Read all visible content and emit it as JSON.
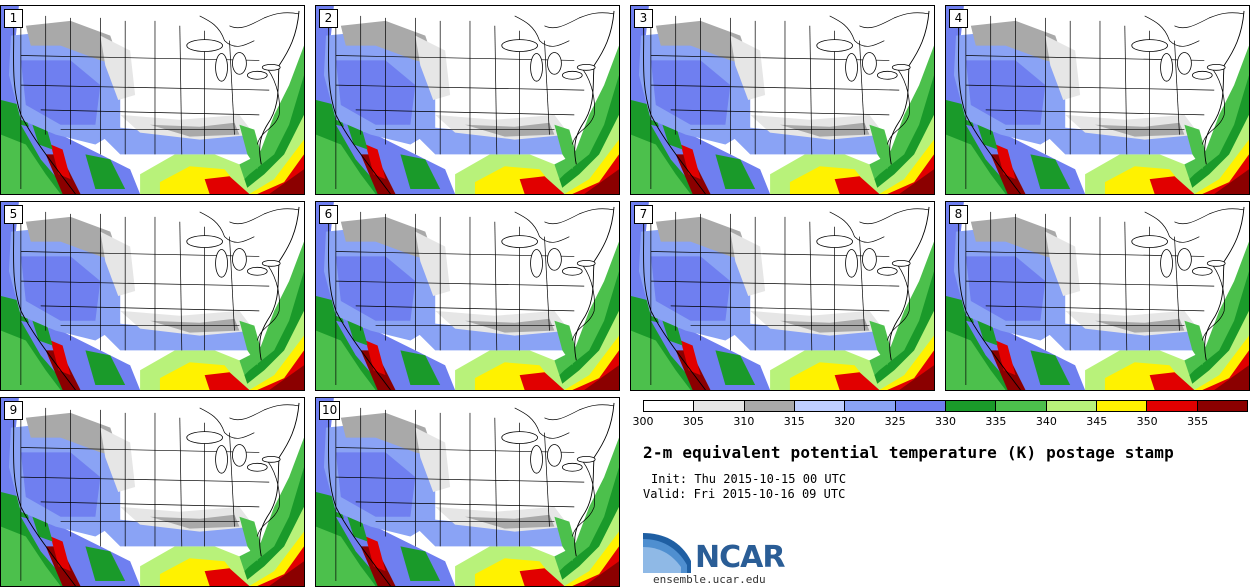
{
  "panels": [
    {
      "label": "1"
    },
    {
      "label": "2"
    },
    {
      "label": "3"
    },
    {
      "label": "4"
    },
    {
      "label": "5"
    },
    {
      "label": "6"
    },
    {
      "label": "7"
    },
    {
      "label": "8"
    },
    {
      "label": "9"
    },
    {
      "label": "10"
    }
  ],
  "colorbar": {
    "colors": [
      "#ffffff",
      "#e6e6e6",
      "#a9a9a9",
      "#bfcfff",
      "#8aa3f5",
      "#6f7ff0",
      "#1a9a2a",
      "#4cc04c",
      "#b8f27a",
      "#fff200",
      "#e10000",
      "#8b0000"
    ],
    "ticks": [
      "300",
      "305",
      "310",
      "315",
      "320",
      "325",
      "330",
      "335",
      "340",
      "345",
      "350",
      "355"
    ]
  },
  "title": "2-m equivalent potential temperature (K) postage stamp",
  "init": "Init: Thu 2015-10-15 00 UTC",
  "valid": "Valid: Fri 2015-10-16 09 UTC",
  "logo_text": "NCAR",
  "site": "ensemble.ucar.edu"
}
